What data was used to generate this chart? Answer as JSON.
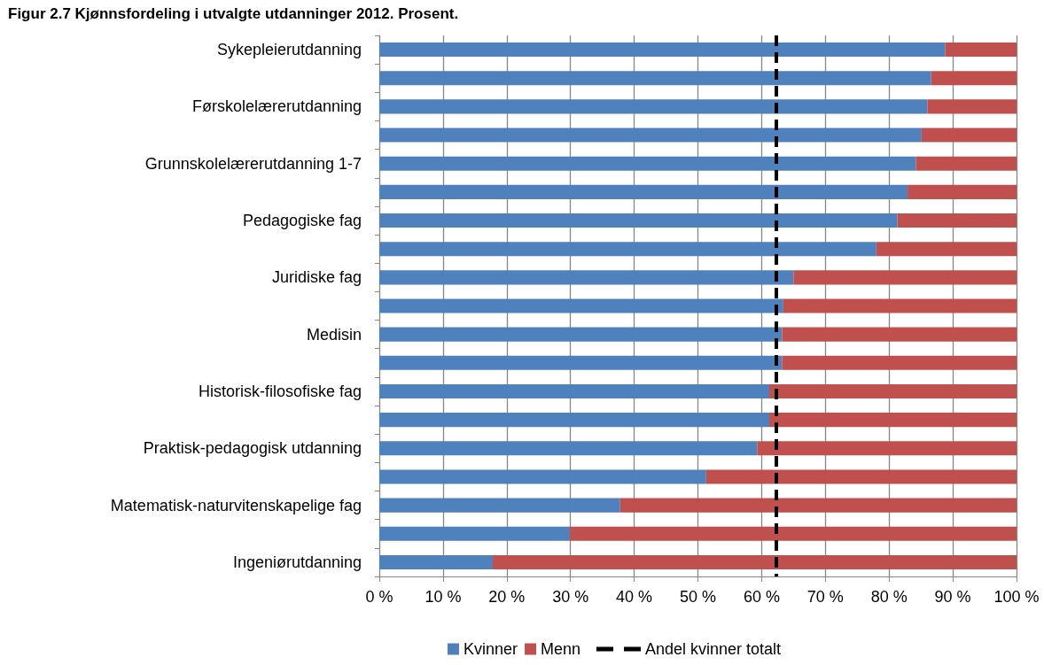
{
  "chart_data": {
    "type": "bar",
    "orientation": "horizontal",
    "stacked": true,
    "title": "Figur 2.7 Kjønnsfordeling i utvalgte utdanninger 2012. Prosent.",
    "categories": [
      "Sykepleierutdanning",
      null,
      "Førskolelærerutdanning",
      null,
      "Grunnskolelærerutdanning 1-7",
      null,
      "Pedagogiske fag",
      null,
      "Juridiske fag",
      null,
      "Medisin",
      null,
      "Historisk-filosofiske fag",
      null,
      "Praktisk-pedagogisk utdanning",
      null,
      "Matematisk-naturvitenskapelige fag",
      null,
      "Ingeniørutdanning"
    ],
    "series": [
      {
        "name": "Kvinner",
        "color": "#4f81bd",
        "values": [
          88.8,
          86.6,
          86.0,
          85.1,
          84.2,
          82.9,
          81.3,
          78.0,
          65.0,
          63.4,
          63.2,
          63.2,
          61.2,
          61.2,
          59.3,
          51.3,
          37.8,
          29.9,
          17.8
        ]
      },
      {
        "name": "Menn",
        "color": "#c0504d",
        "values": [
          11.2,
          13.4,
          14.0,
          14.9,
          15.8,
          17.1,
          18.7,
          22.0,
          35.0,
          36.6,
          36.8,
          36.8,
          38.8,
          38.8,
          40.7,
          48.7,
          62.2,
          70.1,
          82.2
        ]
      }
    ],
    "xlim": [
      0,
      100
    ],
    "xticks": [
      {
        "value": 0,
        "label": "0 %"
      },
      {
        "value": 10,
        "label": "10 %"
      },
      {
        "value": 20,
        "label": "20 %"
      },
      {
        "value": 30,
        "label": "30 %"
      },
      {
        "value": 40,
        "label": "40 %"
      },
      {
        "value": 50,
        "label": "50 %"
      },
      {
        "value": 60,
        "label": "60 %"
      },
      {
        "value": 70,
        "label": "70 %"
      },
      {
        "value": 80,
        "label": "80 %"
      },
      {
        "value": 90,
        "label": "90 %"
      },
      {
        "value": 100,
        "label": "100 %"
      }
    ],
    "grid": "x",
    "legend": "bottom",
    "ref_lines": [
      {
        "axis": "x",
        "value": 62.3,
        "label": "Andel kvinner totalt",
        "color": "#000000",
        "line_style": "dashed"
      }
    ]
  }
}
